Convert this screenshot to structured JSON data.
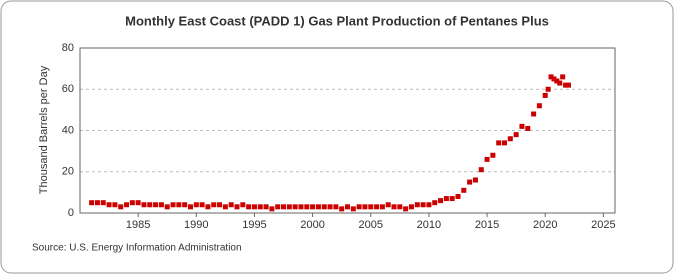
{
  "chart_data": {
    "type": "scatter",
    "title": "Monthly East Coast (PADD 1) Gas Plant Production of Pentanes Plus",
    "y_label": "Thousand Barrels per Day",
    "source": "Source: U.S. Energy Information Administration",
    "color": "#cc0000",
    "xlim": [
      1980,
      2026
    ],
    "xticks": [
      1985,
      1990,
      1995,
      2000,
      2005,
      2010,
      2015,
      2020,
      2025
    ],
    "ylim": [
      0,
      80
    ],
    "yticks": [
      0,
      20,
      40,
      60,
      80
    ],
    "grid": true,
    "x": [
      1981,
      1981.5,
      1982,
      1982.5,
      1983,
      1983.5,
      1984,
      1984.5,
      1985,
      1985.5,
      1986,
      1986.5,
      1987,
      1987.5,
      1988,
      1988.5,
      1989,
      1989.5,
      1990,
      1990.5,
      1991,
      1991.5,
      1992,
      1992.5,
      1993,
      1993.5,
      1994,
      1994.5,
      1995,
      1995.5,
      1996,
      1996.5,
      1997,
      1997.5,
      1998,
      1998.5,
      1999,
      1999.5,
      2000,
      2000.5,
      2001,
      2001.5,
      2002,
      2002.5,
      2003,
      2003.5,
      2004,
      2004.5,
      2005,
      2005.5,
      2006,
      2006.5,
      2007,
      2007.5,
      2008,
      2008.5,
      2009,
      2009.5,
      2010,
      2010.5,
      2011,
      2011.5,
      2012,
      2012.5,
      2013,
      2013.5,
      2014,
      2014.5,
      2015,
      2015.5,
      2016,
      2016.5,
      2017,
      2017.5,
      2018,
      2018.5,
      2019,
      2019.5,
      2020,
      2020.25,
      2020.5,
      2020.75,
      2021,
      2021.25,
      2021.5,
      2021.75,
      2022
    ],
    "values": [
      5,
      5,
      5,
      4,
      4,
      3,
      4,
      5,
      5,
      4,
      4,
      4,
      4,
      3,
      4,
      4,
      4,
      3,
      4,
      4,
      3,
      4,
      4,
      3,
      4,
      3,
      4,
      3,
      3,
      3,
      3,
      2,
      3,
      3,
      3,
      3,
      3,
      3,
      3,
      3,
      3,
      3,
      3,
      2,
      3,
      2,
      3,
      3,
      3,
      3,
      3,
      4,
      3,
      3,
      2,
      3,
      4,
      4,
      4,
      5,
      6,
      7,
      7,
      8,
      11,
      15,
      16,
      21,
      26,
      28,
      34,
      34,
      36,
      38,
      42,
      41,
      48,
      52,
      57,
      60,
      66,
      65,
      64,
      63,
      66,
      62,
      62
    ]
  }
}
